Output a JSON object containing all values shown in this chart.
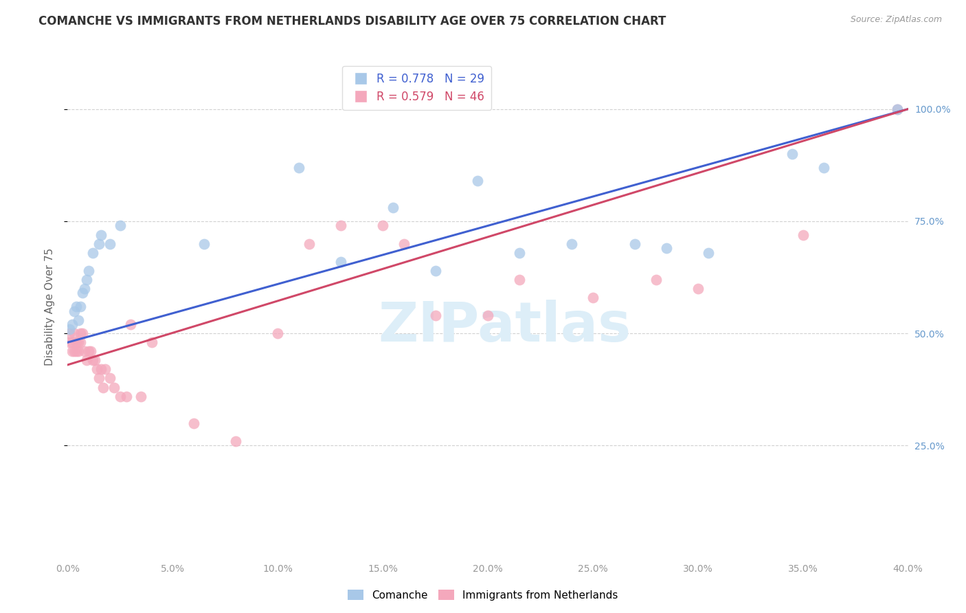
{
  "title": "COMANCHE VS IMMIGRANTS FROM NETHERLANDS DISABILITY AGE OVER 75 CORRELATION CHART",
  "source": "Source: ZipAtlas.com",
  "ylabel": "Disability Age Over 75",
  "blue_R": 0.778,
  "blue_N": 29,
  "pink_R": 0.579,
  "pink_N": 46,
  "blue_label": "Comanche",
  "pink_label": "Immigrants from Netherlands",
  "blue_color": "#A8C8E8",
  "pink_color": "#F4A8BC",
  "blue_line_color": "#4060D0",
  "pink_line_color": "#D04868",
  "background_color": "#ffffff",
  "grid_color": "#cccccc",
  "watermark_color": "#ddeef8",
  "right_tick_color": "#6699CC",
  "xlim": [
    0.0,
    0.4
  ],
  "ylim": [
    0.0,
    1.12
  ],
  "y_ticks": [
    0.25,
    0.5,
    0.75,
    1.0
  ],
  "y_tick_labels": [
    "25.0%",
    "50.0%",
    "75.0%",
    "100.0%"
  ],
  "x_ticks": [
    0.0,
    0.05,
    0.1,
    0.15,
    0.2,
    0.25,
    0.3,
    0.35,
    0.4
  ],
  "x_tick_labels": [
    "0.0%",
    "5.0%",
    "10.0%",
    "15.0%",
    "20.0%",
    "25.0%",
    "30.0%",
    "35.0%",
    "40.0%"
  ],
  "blue_x": [
    0.001,
    0.002,
    0.003,
    0.004,
    0.005,
    0.006,
    0.007,
    0.008,
    0.009,
    0.01,
    0.012,
    0.015,
    0.016,
    0.02,
    0.025,
    0.065,
    0.11,
    0.155,
    0.195,
    0.215,
    0.27,
    0.305,
    0.345,
    0.36,
    0.395,
    0.13,
    0.175,
    0.24,
    0.285
  ],
  "blue_y": [
    0.51,
    0.52,
    0.55,
    0.56,
    0.53,
    0.56,
    0.59,
    0.6,
    0.62,
    0.64,
    0.68,
    0.7,
    0.72,
    0.7,
    0.74,
    0.7,
    0.87,
    0.78,
    0.84,
    0.68,
    0.7,
    0.68,
    0.9,
    0.87,
    1.0,
    0.66,
    0.64,
    0.7,
    0.69
  ],
  "pink_x": [
    0.001,
    0.001,
    0.002,
    0.002,
    0.003,
    0.003,
    0.004,
    0.004,
    0.005,
    0.005,
    0.006,
    0.006,
    0.007,
    0.008,
    0.009,
    0.01,
    0.011,
    0.012,
    0.013,
    0.014,
    0.015,
    0.016,
    0.017,
    0.018,
    0.02,
    0.022,
    0.025,
    0.028,
    0.03,
    0.035,
    0.04,
    0.06,
    0.08,
    0.1,
    0.115,
    0.13,
    0.15,
    0.16,
    0.175,
    0.2,
    0.215,
    0.25,
    0.28,
    0.3,
    0.35,
    0.395
  ],
  "pink_y": [
    0.48,
    0.5,
    0.46,
    0.48,
    0.5,
    0.46,
    0.46,
    0.48,
    0.48,
    0.46,
    0.5,
    0.48,
    0.5,
    0.46,
    0.44,
    0.46,
    0.46,
    0.44,
    0.44,
    0.42,
    0.4,
    0.42,
    0.38,
    0.42,
    0.4,
    0.38,
    0.36,
    0.36,
    0.52,
    0.36,
    0.48,
    0.3,
    0.26,
    0.5,
    0.7,
    0.74,
    0.74,
    0.7,
    0.54,
    0.54,
    0.62,
    0.58,
    0.62,
    0.6,
    0.72,
    1.0
  ],
  "title_fontsize": 12,
  "axis_label_fontsize": 11,
  "tick_fontsize": 10
}
